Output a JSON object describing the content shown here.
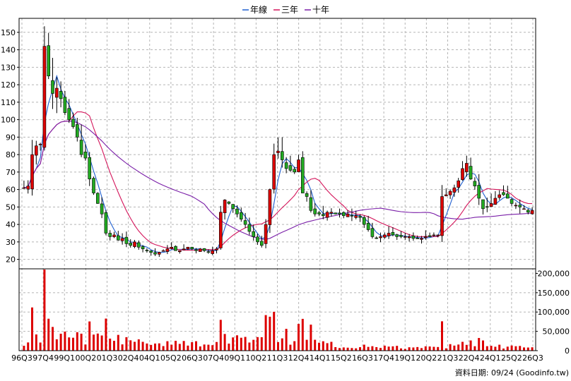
{
  "chart_data": {
    "type": "candlestick",
    "legend": [
      {
        "name": "年線",
        "color": "#1f5fd0"
      },
      {
        "name": "三年",
        "color": "#d4145a"
      },
      {
        "name": "十年",
        "color": "#7a1fa8"
      }
    ],
    "legend_placement": "top-center",
    "grid": true,
    "colors": {
      "up": "#dd0000",
      "down": "#22aa22",
      "volume": "#dd0000"
    },
    "price_axis": {
      "ylim": [
        15,
        158
      ],
      "ticks": [
        "150",
        "140",
        "130",
        "120",
        "110",
        "100",
        "90",
        "80",
        "70",
        "60",
        "50",
        "40",
        "30",
        "20"
      ]
    },
    "volume_axis": {
      "ylim": [
        0,
        210000
      ],
      "ticks": [
        "200,000",
        "150,000",
        "100,000",
        "50,000",
        "0"
      ]
    },
    "x_tick_labels": [
      "96Q3",
      "97Q4",
      "99Q1",
      "00Q2",
      "01Q3",
      "02Q4",
      "04Q1",
      "05Q2",
      "06Q3",
      "07Q4",
      "09Q1",
      "10Q2",
      "11Q3",
      "12Q4",
      "14Q1",
      "15Q2",
      "16Q3",
      "17Q4",
      "19Q1",
      "20Q2",
      "21Q3",
      "22Q4",
      "24Q1",
      "25Q2",
      "26Q3"
    ],
    "source_note": "資料日期: 09/24 (Goodinfo.tw)",
    "closes": [
      61,
      62,
      80,
      85,
      86,
      142,
      125,
      115,
      118,
      112,
      104,
      100,
      96,
      90,
      80,
      78,
      66,
      58,
      52,
      46,
      35,
      33,
      34,
      31,
      32,
      29,
      28,
      30,
      27,
      26,
      25,
      24,
      23,
      24,
      25,
      26,
      27,
      25,
      25,
      26,
      27,
      26,
      25,
      26,
      25,
      24,
      25,
      26,
      47,
      54,
      52,
      49,
      46,
      43,
      40,
      36,
      33,
      30,
      28,
      40,
      60,
      80,
      82,
      77,
      72,
      71,
      70,
      77,
      58,
      56,
      48,
      46,
      46,
      45,
      47,
      47,
      46,
      46,
      45,
      46,
      45,
      45,
      44,
      40,
      37,
      33,
      32,
      33,
      34,
      35,
      34,
      33,
      33,
      33,
      33,
      32,
      32,
      32,
      33,
      33,
      34,
      34,
      56,
      57,
      59,
      61,
      65,
      72,
      75,
      66,
      62,
      55,
      49,
      50,
      52,
      55,
      57,
      57,
      55,
      52,
      51,
      50,
      49,
      47,
      48
    ]
  }
}
